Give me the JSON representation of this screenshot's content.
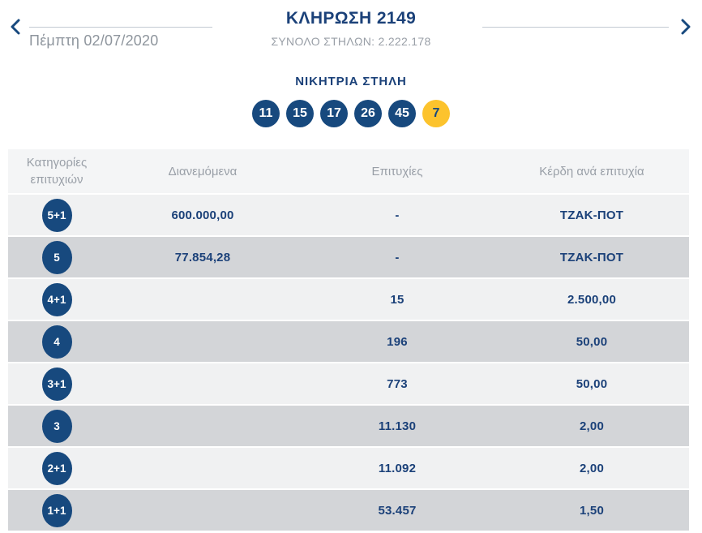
{
  "nav": {
    "prev_icon": "chevron-left",
    "next_icon": "chevron-right",
    "date": "Πέμπτη 02/07/2020",
    "title": "ΚΛΗΡΩΣΗ 2149",
    "total_columns": "ΣΥΝΟΛΟ ΣΤΗΛΩΝ: 2.222.178"
  },
  "winning_column": {
    "title": "ΝΙΚΗΤΡΙΑ ΣΤΗΛΗ",
    "numbers": [
      "11",
      "15",
      "17",
      "26",
      "45"
    ],
    "joker": "7"
  },
  "results_table": {
    "headers": {
      "category": "Κατηγορίες επιτυχιών",
      "distributed": "Διανεμόμενα",
      "successes": "Επιτυχίες",
      "winnings": "Κέρδη ανά επιτυχία"
    },
    "rows": [
      {
        "category": "5+1",
        "distributed": "600.000,00",
        "successes": "-",
        "winnings": "ΤΖΑΚ-ΠΟΤ"
      },
      {
        "category": "5",
        "distributed": "77.854,28",
        "successes": "-",
        "winnings": "ΤΖΑΚ-ΠΟΤ"
      },
      {
        "category": "4+1",
        "distributed": "",
        "successes": "15",
        "winnings": "2.500,00"
      },
      {
        "category": "4",
        "distributed": "",
        "successes": "196",
        "winnings": "50,00"
      },
      {
        "category": "3+1",
        "distributed": "",
        "successes": "773",
        "winnings": "50,00"
      },
      {
        "category": "3",
        "distributed": "",
        "successes": "11.130",
        "winnings": "2,00"
      },
      {
        "category": "2+1",
        "distributed": "",
        "successes": "11.092",
        "winnings": "2,00"
      },
      {
        "category": "1+1",
        "distributed": "",
        "successes": "53.457",
        "winnings": "1,50"
      }
    ]
  },
  "colors": {
    "navy_text": "#1b4179",
    "ball_blue": "#17497e",
    "joker_yellow": "#fcc32d",
    "gray_text": "#999fa7",
    "date_gray": "#8e959d",
    "divider_line": "#c3cad3",
    "row_light": "#f0f1f2",
    "row_dark": "#d3d5d8",
    "header_row_bg": "#f4f5f6"
  }
}
